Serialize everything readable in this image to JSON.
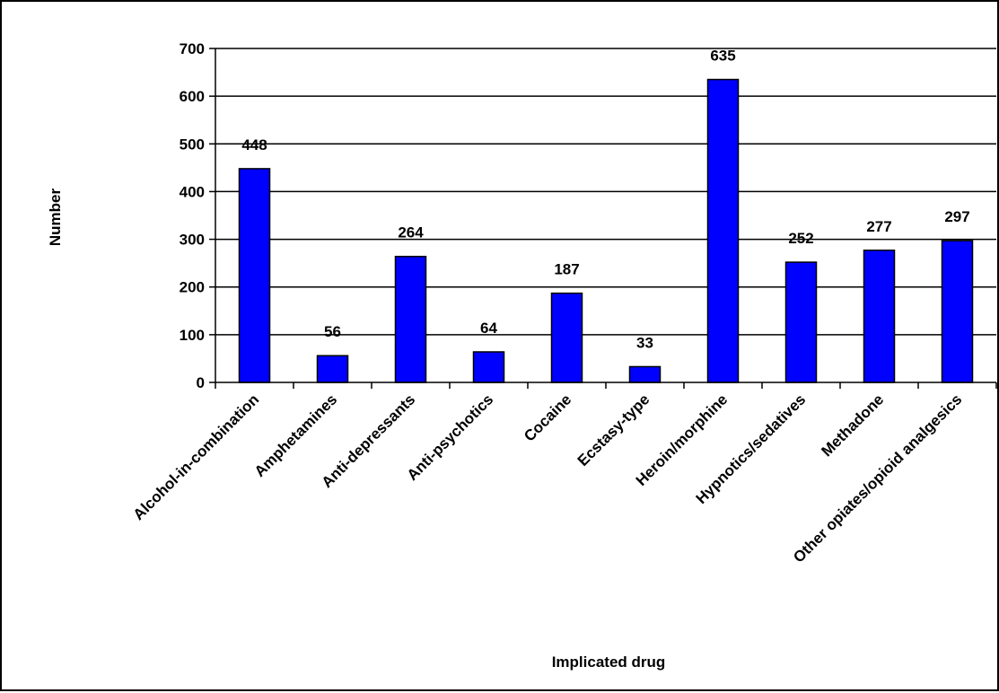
{
  "chart_data": {
    "type": "bar",
    "xlabel": "Implicated drug",
    "ylabel": "Number",
    "ylim": [
      0,
      700
    ],
    "yticks": [
      0,
      100,
      200,
      300,
      400,
      500,
      600,
      700
    ],
    "grid": "horizontal",
    "legend": "none",
    "bar_color": "#0000ff",
    "categories": [
      "Alcohol-in-combination",
      "Amphetamines",
      "Anti-depressants",
      "Anti-psychotics",
      "Cocaine",
      "Ecstasy-type",
      "Heroin/morphine",
      "Hypnotics/sedatives",
      "Methadone",
      "Other opiates/opioid analgesics"
    ],
    "values": [
      448,
      56,
      264,
      64,
      187,
      33,
      635,
      252,
      277,
      297
    ],
    "data_labels": [
      "448",
      "56",
      "264",
      "64",
      "187",
      "33",
      "635",
      "252",
      "277",
      "297"
    ]
  }
}
